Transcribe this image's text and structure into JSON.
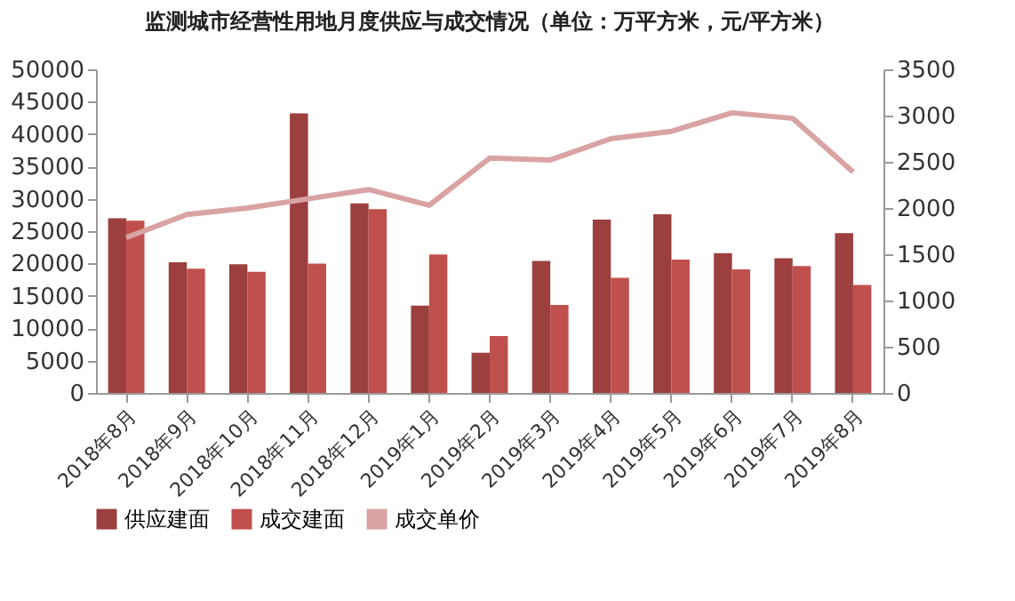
{
  "chart_data": {
    "type": "bar",
    "title": "监测城市经营性用地月度供应与成交情况（单位：万平方米，元/平方米）",
    "categories": [
      "2018年8月",
      "2018年9月",
      "2018年10月",
      "2018年11月",
      "2018年12月",
      "2019年1月",
      "2019年2月",
      "2019年3月",
      "2019年4月",
      "2019年5月",
      "2019年6月",
      "2019年7月",
      "2019年8月"
    ],
    "series": [
      {
        "name": "供应建面",
        "color": "#9c3f3f",
        "values": [
          27000,
          20200,
          19900,
          43200,
          29300,
          13500,
          6200,
          20400,
          26800,
          27600,
          21600,
          20800,
          24700
        ]
      },
      {
        "name": "成交建面",
        "color": "#c0504d",
        "values": [
          26600,
          19200,
          18700,
          20000,
          28400,
          21400,
          8800,
          13600,
          17800,
          20600,
          19100,
          19600,
          16700
        ]
      },
      {
        "name": "成交单价",
        "type": "line",
        "axis": "y2",
        "color": "#d9a3a3",
        "values": [
          1680,
          1930,
          2000,
          2100,
          2200,
          2030,
          2540,
          2520,
          2750,
          2830,
          3030,
          2970,
          2390
        ]
      }
    ],
    "ylim": [
      0,
      50000
    ],
    "yticks": [
      0,
      5000,
      10000,
      15000,
      20000,
      25000,
      30000,
      35000,
      40000,
      45000,
      50000
    ],
    "y2lim": [
      0,
      3500
    ],
    "y2ticks": [
      0,
      500,
      1000,
      1500,
      2000,
      2500,
      3000,
      3500
    ],
    "legend": "bottom",
    "grid": false
  }
}
